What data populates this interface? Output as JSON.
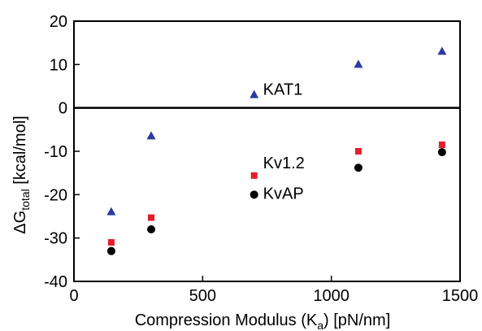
{
  "chart_data": {
    "type": "scatter",
    "xlabel": "Compression Modulus (K",
    "xlabel_sub": "a",
    "xlabel_tail": ") [pN/nm]",
    "ylabel": "ΔG",
    "ylabel_sub": "total",
    "ylabel_tail": " [kcal/mol]",
    "xlim": [
      0,
      1500
    ],
    "ylim": [
      -40,
      20
    ],
    "xticks": [
      0,
      500,
      1000,
      1500
    ],
    "yticks": [
      -40,
      -30,
      -20,
      -10,
      0,
      10,
      20
    ],
    "zero_line": true,
    "grid": false,
    "x": [
      145,
      300,
      700,
      1105,
      1430
    ],
    "series": [
      {
        "name": "KAT1",
        "marker": "triangle",
        "color": "#2b3aa3",
        "values": [
          -24,
          -6.5,
          3,
          10,
          13
        ]
      },
      {
        "name": "Kv1.2",
        "marker": "square",
        "color": "#e31e2d",
        "values": [
          -31,
          -25.3,
          -15.6,
          -10,
          -8.5
        ]
      },
      {
        "name": "KvAP",
        "marker": "circle",
        "color": "#000000",
        "values": [
          -33,
          -28,
          -20,
          -13.8,
          -10.2
        ]
      }
    ]
  }
}
